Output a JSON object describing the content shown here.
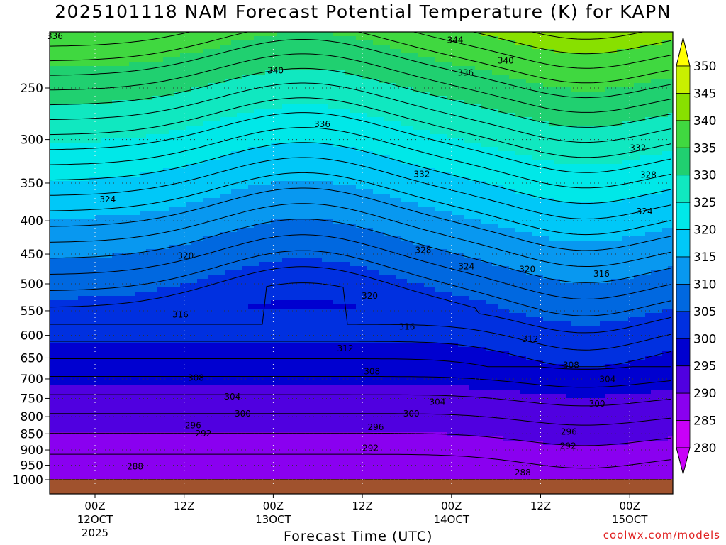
{
  "title": "2025101118 NAM Forecast Potential Temperature (K) for KAPN",
  "xlabel": "Forecast Time (UTC)",
  "credit": "coolwx.com/models",
  "chart_data": {
    "type": "contour-filled",
    "xlabel": "Forecast Time (UTC)",
    "ylabel": "",
    "y_scale": "log-pressure",
    "y_ticks": [
      "250",
      "300",
      "350",
      "400",
      "450",
      "500",
      "550",
      "600",
      "650",
      "700",
      "750",
      "800",
      "850",
      "900",
      "950",
      "1000"
    ],
    "x_ticks": [
      {
        "label": "00Z",
        "sub": "12OCT",
        "sub2": "2025"
      },
      {
        "label": "12Z",
        "sub": "",
        "sub2": ""
      },
      {
        "label": "00Z",
        "sub": "13OCT",
        "sub2": ""
      },
      {
        "label": "12Z",
        "sub": "",
        "sub2": ""
      },
      {
        "label": "00Z",
        "sub": "14OCT",
        "sub2": ""
      },
      {
        "label": "12Z",
        "sub": "",
        "sub2": ""
      },
      {
        "label": "00Z",
        "sub": "15OCT",
        "sub2": ""
      }
    ],
    "colorbar": {
      "levels": [
        350,
        345,
        340,
        335,
        330,
        325,
        320,
        315,
        310,
        305,
        300,
        295,
        290,
        285,
        280
      ],
      "colors": [
        "#ffff00",
        "#c8f000",
        "#88e000",
        "#40d840",
        "#20d070",
        "#10e8c0",
        "#00e8e8",
        "#00c8f8",
        "#0898f0",
        "#0068e0",
        "#0030e0",
        "#0000d0",
        "#5000e0",
        "#8a00f0",
        "#c800f8"
      ]
    },
    "contour_labels": [
      {
        "value": "336",
        "t": -5.4,
        "p": 208
      },
      {
        "value": "344",
        "t": 48.5,
        "p": 211
      },
      {
        "value": "340",
        "t": 24.3,
        "p": 235
      },
      {
        "value": "340",
        "t": 55.3,
        "p": 227
      },
      {
        "value": "336",
        "t": 49.9,
        "p": 237
      },
      {
        "value": "336",
        "t": 30.6,
        "p": 284
      },
      {
        "value": "332",
        "t": 73.1,
        "p": 309
      },
      {
        "value": "332",
        "t": 44.0,
        "p": 339
      },
      {
        "value": "328",
        "t": 74.5,
        "p": 340
      },
      {
        "value": "324",
        "t": 1.7,
        "p": 371
      },
      {
        "value": "324",
        "t": 74.0,
        "p": 387
      },
      {
        "value": "328",
        "t": 44.2,
        "p": 444
      },
      {
        "value": "324",
        "t": 50.0,
        "p": 470
      },
      {
        "value": "320",
        "t": 12.2,
        "p": 453
      },
      {
        "value": "320",
        "t": 58.2,
        "p": 475
      },
      {
        "value": "316",
        "t": 68.2,
        "p": 483
      },
      {
        "value": "320",
        "t": 37.0,
        "p": 522
      },
      {
        "value": "316",
        "t": 11.5,
        "p": 558
      },
      {
        "value": "316",
        "t": 42.0,
        "p": 582
      },
      {
        "value": "312",
        "t": 33.7,
        "p": 628
      },
      {
        "value": "312",
        "t": 58.6,
        "p": 608
      },
      {
        "value": "308",
        "t": 13.6,
        "p": 697
      },
      {
        "value": "308",
        "t": 37.3,
        "p": 682
      },
      {
        "value": "308",
        "t": 64.1,
        "p": 667
      },
      {
        "value": "304",
        "t": 18.5,
        "p": 745
      },
      {
        "value": "304",
        "t": 46.1,
        "p": 760
      },
      {
        "value": "304",
        "t": 69.0,
        "p": 701
      },
      {
        "value": "300",
        "t": 19.9,
        "p": 792
      },
      {
        "value": "300",
        "t": 42.6,
        "p": 792
      },
      {
        "value": "300",
        "t": 67.6,
        "p": 764
      },
      {
        "value": "296",
        "t": 13.2,
        "p": 825
      },
      {
        "value": "296",
        "t": 37.8,
        "p": 830
      },
      {
        "value": "296",
        "t": 63.8,
        "p": 844
      },
      {
        "value": "292",
        "t": 14.6,
        "p": 849
      },
      {
        "value": "292",
        "t": 37.1,
        "p": 894
      },
      {
        "value": "292",
        "t": 63.7,
        "p": 887
      },
      {
        "value": "288",
        "t": 5.4,
        "p": 955
      },
      {
        "value": "288",
        "t": 57.6,
        "p": 975
      }
    ]
  }
}
